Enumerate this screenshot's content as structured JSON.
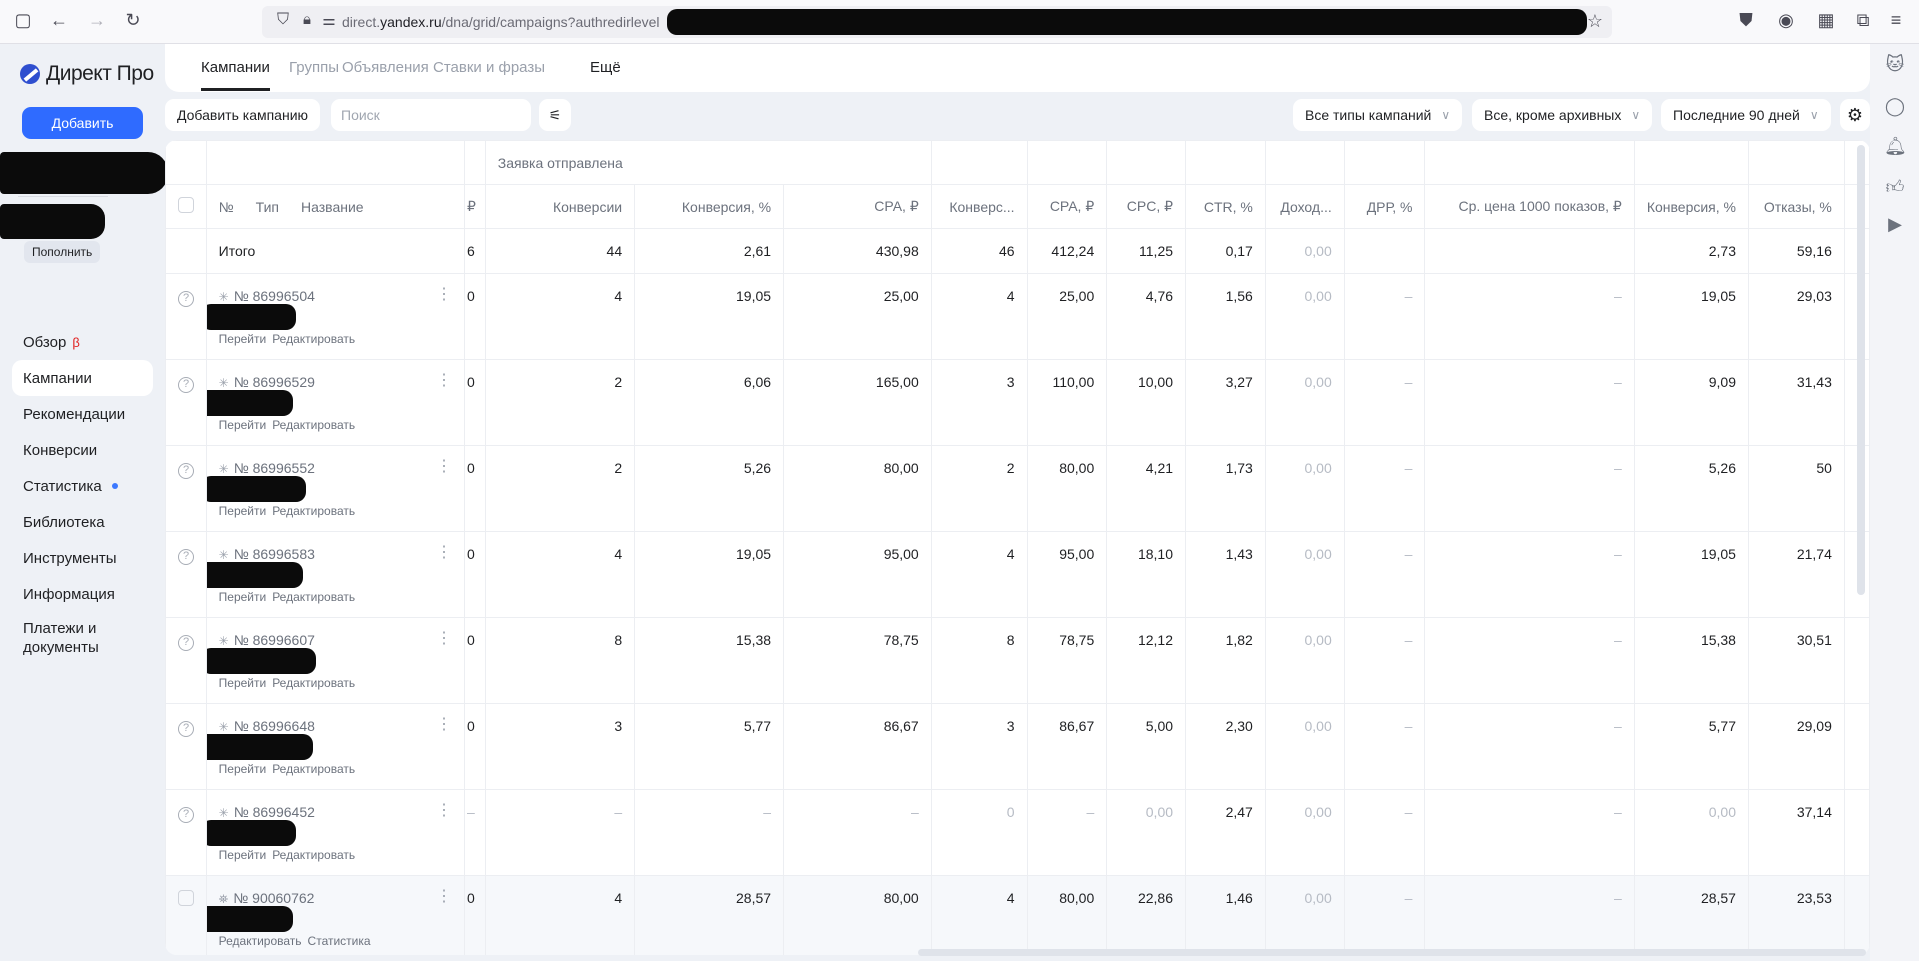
{
  "browser": {
    "url_prefix": "direct.",
    "url_domain": "yandex.ru",
    "url_path": "/dna/grid/campaigns?authredirlevel"
  },
  "sidebar": {
    "logo": "Директ Про",
    "add_label": "Добавить",
    "topup_label": "Пополнить",
    "items": [
      {
        "label": "Обзор",
        "badge": "β"
      },
      {
        "label": "Кампании",
        "active": true
      },
      {
        "label": "Рекомендации"
      },
      {
        "label": "Конверсии"
      },
      {
        "label": "Статистика",
        "dot": true
      },
      {
        "label": "Библиотека"
      },
      {
        "label": "Инструменты"
      },
      {
        "label": "Информация"
      },
      {
        "label": "Платежи и документы"
      }
    ]
  },
  "tabs": [
    {
      "label": "Кампании",
      "active": true
    },
    {
      "label": "Группы"
    },
    {
      "label": "Объявления"
    },
    {
      "label": "Ставки и фразы"
    },
    {
      "label": "Ещё"
    }
  ],
  "toolbar": {
    "add_campaign": "Добавить кампанию",
    "search_placeholder": "Поиск",
    "filter_types": "Все типы кампаний",
    "filter_status": "Все, кроме архивных",
    "filter_period": "Последние 90 дней"
  },
  "table": {
    "group_header": "Заявка отправлена",
    "name_headers": {
      "num": "№",
      "type": "Тип",
      "name": "Название"
    },
    "partial_header": "₽",
    "columns": [
      "Конверсии",
      "Конверсия, %",
      "CPA, ₽",
      "Конверс...",
      "CPA, ₽",
      "CPC, ₽",
      "CTR, %",
      "Доход...",
      "ДРР, %",
      "Ср. цена 1000 показов, ₽",
      "Конверсия, %",
      "Отказы, %"
    ],
    "total": {
      "label": "Итого",
      "partial": "6",
      "values": [
        "44",
        "2,61",
        "430,98",
        "46",
        "412,24",
        "11,25",
        "0,17",
        "0,00",
        "",
        "",
        "2,73",
        "59,16"
      ]
    },
    "rows": [
      {
        "id": "№ 86996504",
        "partial": "0",
        "links": [
          "Перейти",
          "Редактировать"
        ],
        "values": [
          "4",
          "19,05",
          "25,00",
          "4",
          "25,00",
          "4,76",
          "1,56",
          "0,00",
          "–",
          "–",
          "19,05",
          "29,03"
        ]
      },
      {
        "id": "№ 86996529",
        "partial": "0",
        "links": [
          "Перейти",
          "Редактировать"
        ],
        "values": [
          "2",
          "6,06",
          "165,00",
          "3",
          "110,00",
          "10,00",
          "3,27",
          "0,00",
          "–",
          "–",
          "9,09",
          "31,43"
        ]
      },
      {
        "id": "№ 86996552",
        "partial": "0",
        "links": [
          "Перейти",
          "Редактировать"
        ],
        "values": [
          "2",
          "5,26",
          "80,00",
          "2",
          "80,00",
          "4,21",
          "1,73",
          "0,00",
          "–",
          "–",
          "5,26",
          "50"
        ]
      },
      {
        "id": "№ 86996583",
        "partial": "0",
        "links": [
          "Перейти",
          "Редактировать"
        ],
        "values": [
          "4",
          "19,05",
          "95,00",
          "4",
          "95,00",
          "18,10",
          "1,43",
          "0,00",
          "–",
          "–",
          "19,05",
          "21,74"
        ]
      },
      {
        "id": "№ 86996607",
        "partial": "0",
        "links": [
          "Перейти",
          "Редактировать"
        ],
        "values": [
          "8",
          "15,38",
          "78,75",
          "8",
          "78,75",
          "12,12",
          "1,82",
          "0,00",
          "–",
          "–",
          "15,38",
          "30,51"
        ]
      },
      {
        "id": "№ 86996648",
        "partial": "0",
        "links": [
          "Перейти",
          "Редактировать"
        ],
        "values": [
          "3",
          "5,77",
          "86,67",
          "3",
          "86,67",
          "5,00",
          "2,30",
          "0,00",
          "–",
          "–",
          "5,77",
          "29,09"
        ]
      },
      {
        "id": "№ 86996452",
        "partial": "–",
        "links": [
          "Перейти",
          "Редактировать"
        ],
        "values": [
          "–",
          "–",
          "–",
          "0",
          "–",
          "0,00",
          "2,47",
          "0,00",
          "–",
          "–",
          "0,00",
          "37,14"
        ],
        "muted": [
          3,
          5,
          10
        ]
      },
      {
        "id": "№ 90060762",
        "partial": "0",
        "links": [
          "Редактировать",
          "Статистика"
        ],
        "values": [
          "4",
          "28,57",
          "80,00",
          "4",
          "80,00",
          "22,86",
          "1,46",
          "0,00",
          "–",
          "–",
          "28,57",
          "23,53"
        ],
        "checkbox": true
      }
    ]
  }
}
